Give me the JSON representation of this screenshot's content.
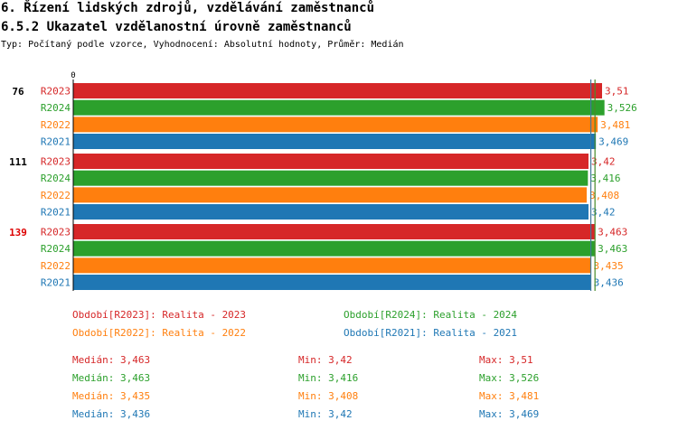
{
  "header": {
    "title": "6. Řízení lidských zdrojů, vzdělávání zaměstnanců",
    "subtitle": "6.5.2 Ukazatel vzdělanostní úrovně zaměstnanců",
    "info": "Typ: Počítaný podle vzorce, Vyhodnocení: Absolutní hodnoty, Průměr: Medián"
  },
  "colors": {
    "R2023": "#d62728",
    "R2024": "#2ca02c",
    "R2022": "#ff7f0e",
    "R2021": "#1f77b4",
    "highlight_group": "#dd0000"
  },
  "chart_data": {
    "type": "bar",
    "orientation": "horizontal",
    "axis_zero_label": "0",
    "xlim": [
      0,
      3.6
    ],
    "value_format": "comma_decimal",
    "groups": [
      {
        "label": "76",
        "highlight": false,
        "bars": [
          {
            "series": "R2023",
            "value": 3.51
          },
          {
            "series": "R2024",
            "value": 3.526
          },
          {
            "series": "R2022",
            "value": 3.481
          },
          {
            "series": "R2021",
            "value": 3.469
          }
        ]
      },
      {
        "label": "111",
        "highlight": false,
        "bars": [
          {
            "series": "R2023",
            "value": 3.42
          },
          {
            "series": "R2024",
            "value": 3.416
          },
          {
            "series": "R2022",
            "value": 3.408
          },
          {
            "series": "R2021",
            "value": 3.42
          }
        ]
      },
      {
        "label": "139",
        "highlight": true,
        "bars": [
          {
            "series": "R2023",
            "value": 3.463
          },
          {
            "series": "R2024",
            "value": 3.463
          },
          {
            "series": "R2022",
            "value": 3.435
          },
          {
            "series": "R2021",
            "value": 3.436
          }
        ]
      }
    ],
    "reference_lines": [
      {
        "series": "R2022",
        "value": 3.435
      },
      {
        "series": "R2021",
        "value": 3.436
      },
      {
        "series": "R2023",
        "value": 3.463
      },
      {
        "series": "R2024",
        "value": 3.463
      }
    ],
    "legend": [
      {
        "series": "R2023",
        "text": "Období[R2023]: Realita - 2023"
      },
      {
        "series": "R2024",
        "text": "Období[R2024]: Realita - 2024"
      },
      {
        "series": "R2022",
        "text": "Období[R2022]: Realita - 2022"
      },
      {
        "series": "R2021",
        "text": "Období[R2021]: Realita - 2021"
      }
    ],
    "stats": [
      {
        "series": "R2023",
        "median": "Medián: 3,463",
        "min": "Min: 3,42",
        "max": "Max: 3,51"
      },
      {
        "series": "R2024",
        "median": "Medián: 3,463",
        "min": "Min: 3,416",
        "max": "Max: 3,526"
      },
      {
        "series": "R2022",
        "median": "Medián: 3,435",
        "min": "Min: 3,408",
        "max": "Max: 3,481"
      },
      {
        "series": "R2021",
        "median": "Medián: 3,436",
        "min": "Min: 3,42",
        "max": "Max: 3,469"
      }
    ]
  }
}
